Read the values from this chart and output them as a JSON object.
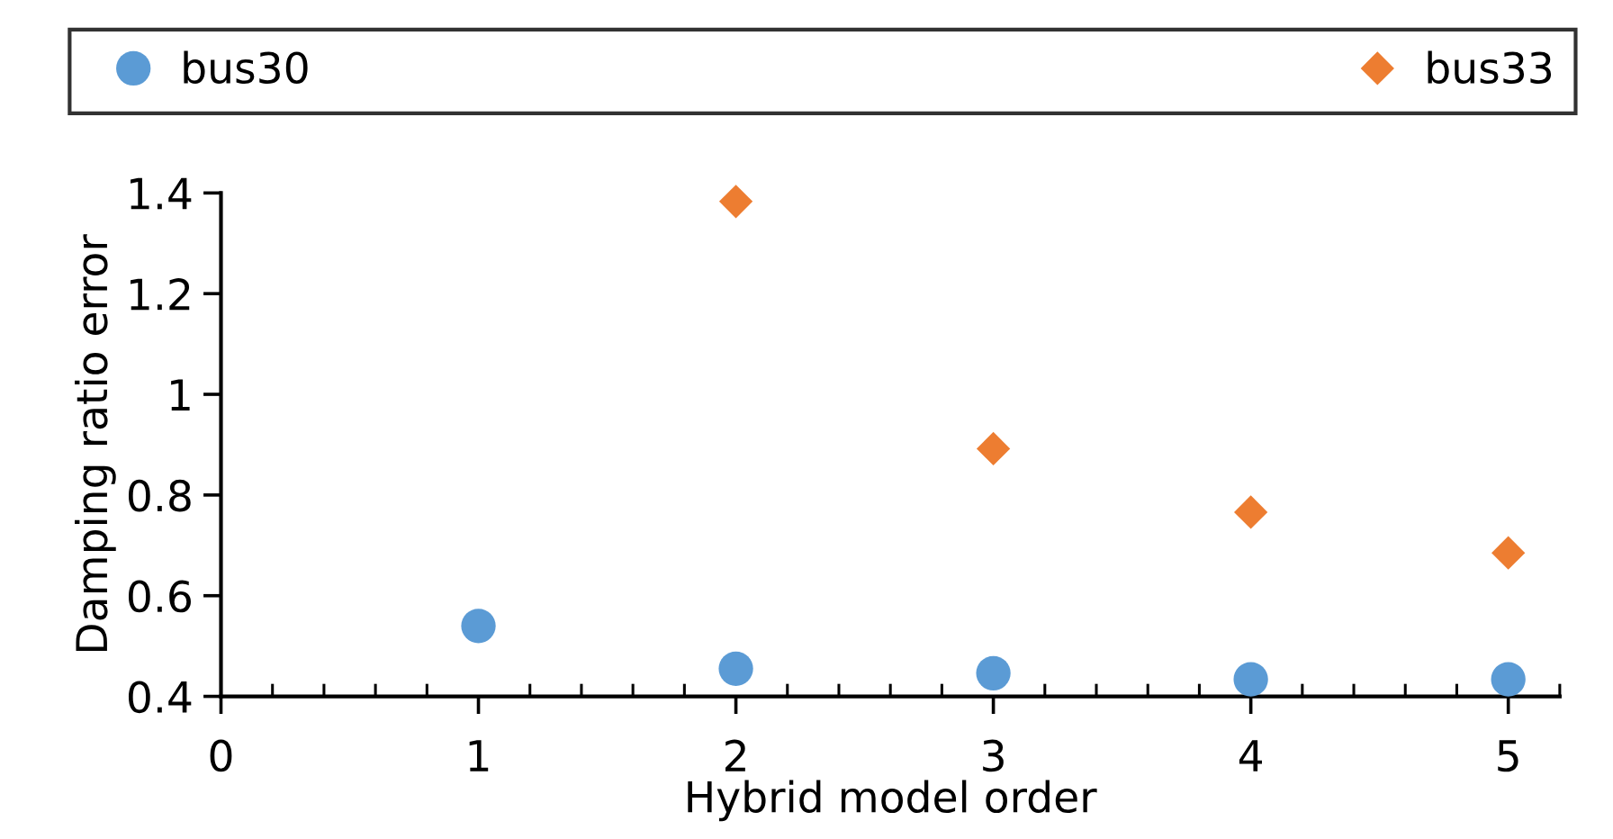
{
  "chart_data": {
    "type": "scatter",
    "xlabel": "Hybrid model order",
    "ylabel": "Damping ratio error",
    "xlim": [
      0,
      5.2
    ],
    "xticks": [
      0,
      1,
      2,
      3,
      4,
      5
    ],
    "ylim": [
      0.4,
      1.4
    ],
    "yticks": [
      0.4,
      0.6,
      0.8,
      1,
      1.2,
      1.4
    ],
    "legend": "top",
    "grid": false,
    "series": [
      {
        "name": "bus30",
        "color": "#5b9bd5",
        "marker": "circle",
        "x": [
          1,
          2,
          3,
          4,
          5
        ],
        "values": [
          0.54,
          0.455,
          0.446,
          0.434,
          0.434
        ]
      },
      {
        "name": "bus33",
        "color": "#ed7d31",
        "marker": "diamond",
        "x": [
          2,
          3,
          4,
          5
        ],
        "values": [
          1.383,
          0.892,
          0.766,
          0.685
        ]
      }
    ]
  }
}
